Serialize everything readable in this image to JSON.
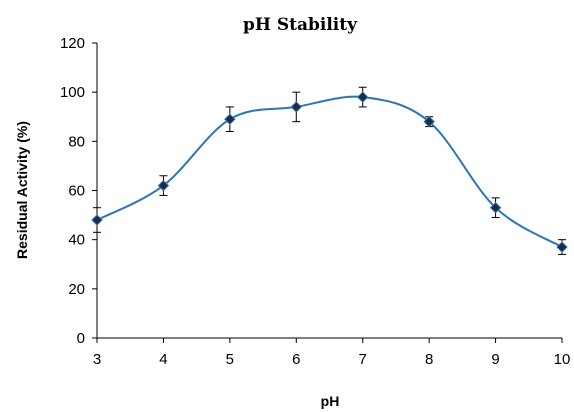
{
  "chart_data": {
    "type": "line",
    "title": "pH Stability",
    "xlabel": "pH",
    "ylabel": "Residual Activity (%)",
    "xlim": [
      3,
      10
    ],
    "ylim": [
      0,
      120
    ],
    "x_ticks": [
      "3",
      "4",
      "5",
      "6",
      "7",
      "8",
      "9",
      "10"
    ],
    "y_ticks": [
      "0",
      "20",
      "40",
      "60",
      "80",
      "100",
      "120"
    ],
    "grid": false,
    "legend": "none",
    "smoothed": true,
    "line_color": "#2E75B6",
    "marker_color": "#1F2A44",
    "series": [
      {
        "x": [
          3,
          4,
          5,
          6,
          7,
          8,
          9,
          10
        ],
        "y": [
          48,
          62,
          89,
          94,
          98,
          88,
          53,
          37
        ],
        "error": [
          5,
          4,
          5,
          6,
          4,
          2,
          4,
          3
        ]
      }
    ]
  }
}
